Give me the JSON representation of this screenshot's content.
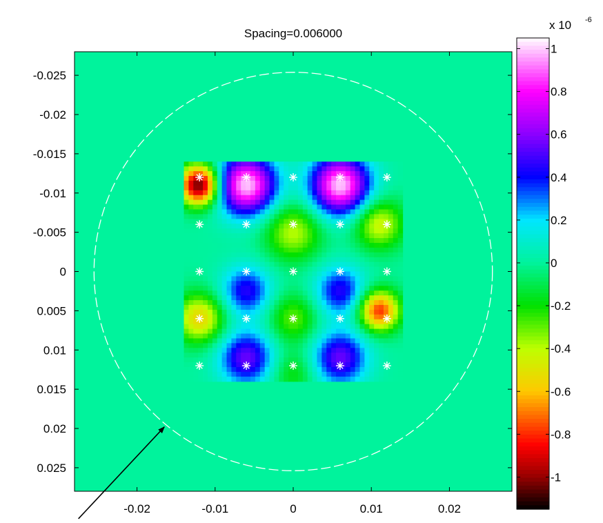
{
  "chart_data": {
    "type": "heatmap",
    "title": "Spacing=0.006000",
    "xlabel": "",
    "ylabel": "",
    "xlim": [
      -0.028,
      0.028
    ],
    "ylim": [
      -0.028,
      0.028
    ],
    "y_axis_reversed": true,
    "x_ticks": [
      -0.02,
      -0.01,
      0,
      0.01,
      0.02
    ],
    "x_tick_labels": [
      "-0.02",
      "-0.01",
      "0",
      "0.01",
      "0.02"
    ],
    "y_ticks": [
      -0.025,
      -0.02,
      -0.015,
      -0.01,
      -0.005,
      0,
      0.005,
      0.01,
      0.015,
      0.02,
      0.025
    ],
    "y_tick_labels": [
      "-0.025",
      "-0.02",
      "-0.015",
      "-0.01",
      "-0.005",
      "0",
      "0.005",
      "0.01",
      "0.015",
      "0.02",
      "0.025"
    ],
    "colormap": "hsv-like",
    "background_value": 0,
    "colorbar": {
      "range": [
        -1.15,
        1.05
      ],
      "ticks": [
        1,
        0.8,
        0.6,
        0.4,
        0.2,
        0,
        -0.2,
        -0.4,
        -0.6,
        -0.8,
        -1
      ],
      "tick_labels": [
        "1",
        "0.8",
        "0.6",
        "0.4",
        "0.2",
        "0",
        "-0.2",
        "-0.4",
        "-0.6",
        "-0.8",
        "-1"
      ],
      "exponent_base": "x 10",
      "exponent_power": "-6"
    },
    "data_region": {
      "x": [
        -0.014,
        0.014
      ],
      "y": [
        -0.014,
        0.014
      ]
    },
    "features": [
      {
        "x": -0.006,
        "y": -0.011,
        "value": 1.0,
        "sigma": 0.0026
      },
      {
        "x": 0.006,
        "y": -0.011,
        "value": 1.0,
        "sigma": 0.0026
      },
      {
        "x": -0.006,
        "y": 0.0025,
        "value": 0.45,
        "sigma": 0.0022
      },
      {
        "x": 0.006,
        "y": 0.0025,
        "value": 0.45,
        "sigma": 0.0022
      },
      {
        "x": -0.006,
        "y": 0.011,
        "value": 0.55,
        "sigma": 0.0024
      },
      {
        "x": 0.006,
        "y": 0.011,
        "value": 0.55,
        "sigma": 0.0024
      },
      {
        "x": -0.012,
        "y": -0.011,
        "value": -1.1,
        "sigma": 0.0018
      },
      {
        "x": -0.012,
        "y": 0.006,
        "value": -0.55,
        "sigma": 0.0022
      },
      {
        "x": 0.011,
        "y": 0.005,
        "value": -0.8,
        "sigma": 0.0018
      },
      {
        "x": 0.011,
        "y": -0.006,
        "value": -0.45,
        "sigma": 0.0022
      },
      {
        "x": 0.0,
        "y": -0.005,
        "value": -0.4,
        "sigma": 0.0025
      },
      {
        "x": 0.0,
        "y": 0.006,
        "value": -0.3,
        "sigma": 0.0022
      },
      {
        "x": 0.0,
        "y": 0.013,
        "value": -0.2,
        "sigma": 0.002
      }
    ],
    "markers": {
      "symbol": "*",
      "color": "#ffffff",
      "x": [
        -0.012,
        -0.006,
        0,
        0.006,
        0.012
      ],
      "y": [
        -0.012,
        -0.006,
        0,
        0.006,
        0.012
      ]
    },
    "circle": {
      "center": [
        0,
        0
      ],
      "radius": 0.0255,
      "style": "dashed",
      "color": "#ffffff"
    },
    "annotation": {
      "type": "arrow",
      "tail": [
        -0.0275,
        0.0315
      ],
      "head": [
        -0.0165,
        0.0198
      ],
      "color": "#000000"
    }
  }
}
